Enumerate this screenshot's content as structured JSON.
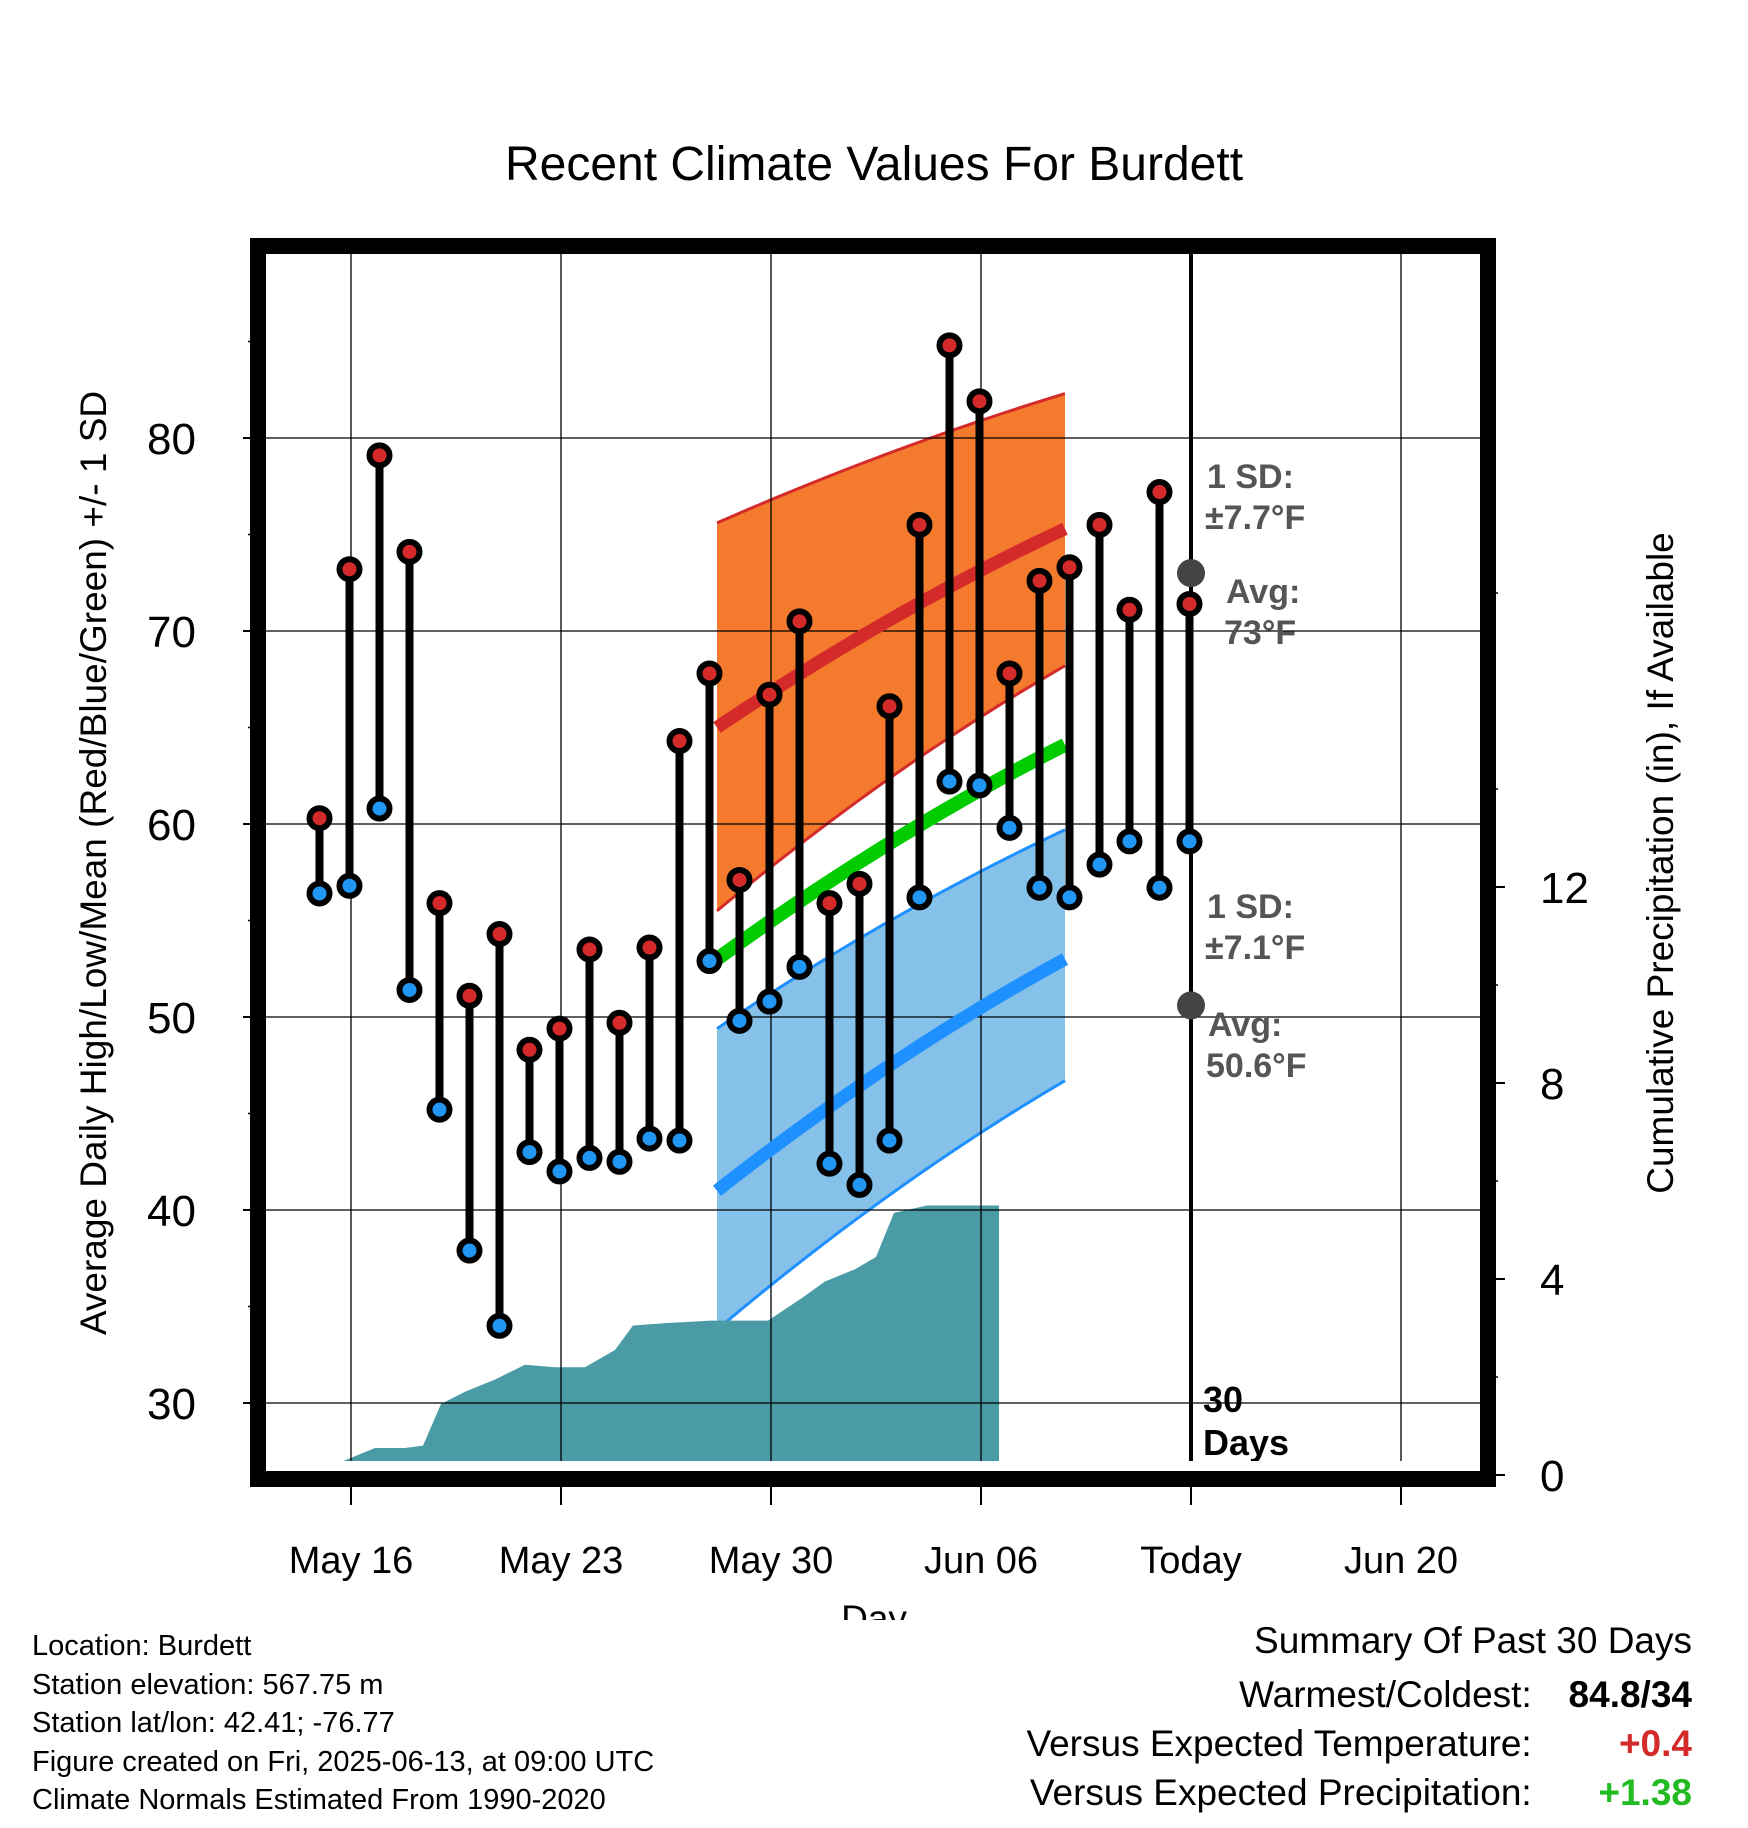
{
  "chart_data": {
    "type": "line",
    "title": "Recent Climate Values For Burdett",
    "xlabel": "Day",
    "ylabel": "Average Daily High/Low/Mean (Red/Blue/Green) +/- 1 SD",
    "y2label": "Cumulative Precipitation (in), If Available",
    "ylim": [
      26,
      90
    ],
    "y2lim": [
      0,
      20
    ],
    "yticks": [
      30,
      40,
      50,
      60,
      70,
      80
    ],
    "y2ticks": [
      0,
      4,
      8,
      12
    ],
    "xlim": [
      12.2,
      23.8
    ],
    "x_unit": "day offset from May 16 (labels are dates)",
    "xtick_labels": [
      "May 16",
      "May 23",
      "May 30",
      "Jun 06",
      "Today",
      "Jun 20"
    ],
    "today_label": "Today",
    "window_label": [
      "30",
      "Days"
    ],
    "normals": {
      "high_mean": {
        "start": 65,
        "end": 75.3
      },
      "high_sd_upper": {
        "start": 75.6,
        "end": 82.3
      },
      "high_sd_lower": {
        "start": 55.5,
        "end": 68.2
      },
      "mean": {
        "start": 53.0,
        "end": 64.1
      },
      "low_mean": {
        "start": 41.0,
        "end": 53.0
      },
      "low_sd_upper": {
        "start": 49.4,
        "end": 59.7
      },
      "low_sd_lower": {
        "start": 33.8,
        "end": 46.7
      }
    },
    "series": [
      {
        "name": "High",
        "color": "#d42a2a",
        "values": [
          60.3,
          73.2,
          79.1,
          74.1,
          55.9,
          51.1,
          54.3,
          48.3,
          49.4,
          53.5,
          49.7,
          53.6,
          64.3,
          67.8,
          57.1,
          66.7,
          70.5,
          55.9,
          56.9,
          66.1,
          75.5,
          84.8,
          81.9,
          67.8,
          72.6,
          73.3,
          75.5,
          71.1,
          77.2,
          71.4
        ]
      },
      {
        "name": "Low",
        "color": "#2196f3",
        "values": [
          56.4,
          56.8,
          60.8,
          51.4,
          45.2,
          37.9,
          34.0,
          43.0,
          42.0,
          42.7,
          42.5,
          43.7,
          43.6,
          52.9,
          49.8,
          50.8,
          52.6,
          42.4,
          41.3,
          43.6,
          56.2,
          62.2,
          62.0,
          59.8,
          56.7,
          56.2,
          57.9,
          59.1,
          56.7,
          59.1
        ]
      }
    ],
    "precip_cumulative": [
      [
        13.0,
        0.0
      ],
      [
        14.6,
        0.0
      ],
      [
        15.6,
        0.25
      ],
      [
        16.8,
        0.55
      ],
      [
        17.8,
        0.55
      ],
      [
        18.4,
        0.6
      ],
      [
        19.0,
        1.45
      ],
      [
        19.8,
        1.7
      ],
      [
        20.8,
        1.95
      ],
      [
        21.8,
        2.25
      ],
      [
        22.8,
        2.2
      ],
      [
        23.8,
        2.2
      ],
      [
        24.8,
        2.55
      ],
      [
        25.4,
        3.05
      ],
      [
        26.5,
        3.1
      ],
      [
        28.0,
        3.15
      ],
      [
        29.9,
        3.15
      ],
      [
        31.0,
        3.6
      ],
      [
        31.8,
        3.95
      ],
      [
        32.8,
        4.2
      ],
      [
        33.5,
        4.45
      ],
      [
        34.1,
        5.35
      ],
      [
        35.2,
        5.5
      ],
      [
        36.8,
        5.5
      ],
      [
        37.6,
        5.5
      ]
    ],
    "annotations": {
      "high": {
        "sd_label": "1 SD:",
        "sd_value": "±7.7°F",
        "avg_label": "Avg:",
        "avg_value": "73°F",
        "avg_point": 73.0
      },
      "low": {
        "sd_label": "1 SD:",
        "sd_value": "±7.1°F",
        "avg_label": "Avg:",
        "avg_value": "50.6°F",
        "avg_point": 50.6
      }
    },
    "colors": {
      "high_band": "#f47a2e",
      "high_line": "#d42a2a",
      "mean_line": "#00cc00",
      "low_band": "#85c1e9",
      "low_line": "#1e90ff",
      "precip": "#4a9ba6",
      "annotation": "#555555"
    }
  },
  "footer": {
    "location": "Location: Burdett",
    "elevation": "Station elevation: 567.75 m",
    "latlon": "Station lat/lon: 42.41; -76.77",
    "created": "Figure created on Fri, 2025-06-13, at 09:00 UTC",
    "normals": "Climate Normals Estimated From 1990-2020"
  },
  "summary": {
    "title": "Summary Of Past 30 Days",
    "warmest_label": "Warmest/Coldest:",
    "warmest_value": "84.8/34",
    "temp_label": "Versus Expected Temperature:",
    "temp_value": "+0.4",
    "temp_color": "#d42a2a",
    "precip_label": "Versus Expected Precipitation:",
    "precip_value": "+1.38",
    "precip_color": "#22bb22"
  }
}
